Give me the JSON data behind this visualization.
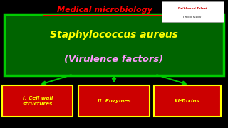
{
  "bg_color": "#000000",
  "title_text": "Medical microbiology",
  "title_color": "#ff0000",
  "watermark_line1": "Dr/Ahmed Talaat",
  "watermark_line2": "[Micro study]",
  "main_box_bg": "#006400",
  "main_box_border": "#00cc00",
  "main_title": "Staphylococcus aureus",
  "main_title_color": "#ffff00",
  "main_subtitle": "(Virulence factors)",
  "main_subtitle_color": "#ff99ff",
  "arrow_color": "#00cc00",
  "box_bg": "#cc0000",
  "box_border": "#ffff00",
  "box_texts": [
    "I. Cell wall\nstructures",
    "II. Enzymes",
    "III-Toxins"
  ],
  "box_text_color": "#ffff00"
}
